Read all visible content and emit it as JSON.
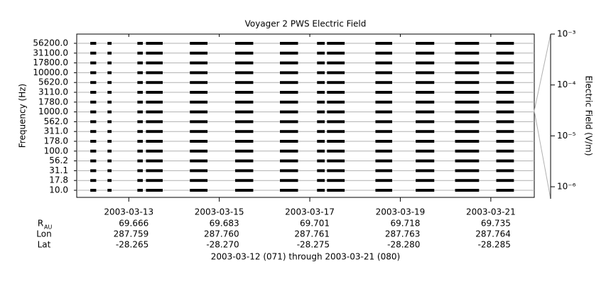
{
  "chart_data": {
    "type": "coverage",
    "title": "Voyager 2 PWS Electric Field",
    "y_label": "Frequency (Hz)",
    "y2_label": "Electric Field (V/m)",
    "categories": [
      "56200.0",
      "31100.0",
      "17800.0",
      "10000.0",
      "5620.0",
      "3110.0",
      "1780.0",
      "1000.0",
      "562.0",
      "311.0",
      "178.0",
      "100.0",
      "56.2",
      "31.1",
      "17.8",
      "10.0"
    ],
    "color": "#000000",
    "grid": true,
    "xlim": [
      70.85,
      80.96
    ],
    "xticks": [
      {
        "value": 72,
        "label": "2003-03-13"
      },
      {
        "value": 74,
        "label": "2003-03-15"
      },
      {
        "value": 76,
        "label": "2003-03-17"
      },
      {
        "value": 78,
        "label": "2003-03-19"
      },
      {
        "value": 80,
        "label": "2003-03-21"
      }
    ],
    "y2_log": true,
    "y2lim": [
      5.8e-07,
      0.001
    ],
    "y2ticks": [
      {
        "value": 0.001,
        "label": "10⁻³"
      },
      {
        "value": 0.0001,
        "label": "10⁻⁴"
      },
      {
        "value": 1e-05,
        "label": "10⁻⁵"
      },
      {
        "value": 1e-06,
        "label": "10⁻⁶"
      }
    ],
    "segments": [
      [
        71.15,
        71.28
      ],
      [
        71.53,
        71.62
      ],
      [
        72.19,
        72.31
      ],
      [
        72.38,
        72.75
      ],
      [
        73.35,
        73.74
      ],
      [
        74.35,
        74.75
      ],
      [
        75.34,
        75.74
      ],
      [
        76.16,
        76.33
      ],
      [
        76.38,
        76.77
      ],
      [
        77.45,
        77.82
      ],
      [
        78.34,
        78.75
      ],
      [
        79.21,
        79.74
      ],
      [
        80.12,
        80.51
      ]
    ],
    "ephemeris": [
      {
        "label": "R",
        "sub": "AU",
        "values": [
          "69.666",
          "69.683",
          "69.701",
          "69.718",
          "69.735"
        ]
      },
      {
        "label": "Lon",
        "values": [
          "287.759",
          "287.760",
          "287.761",
          "287.763",
          "287.764"
        ]
      },
      {
        "label": "Lat",
        "values": [
          "-28.265",
          "-28.270",
          "-28.275",
          "-28.280",
          "-28.285"
        ]
      }
    ],
    "footer": "2003-03-12 (071) through 2003-03-21 (080)"
  }
}
